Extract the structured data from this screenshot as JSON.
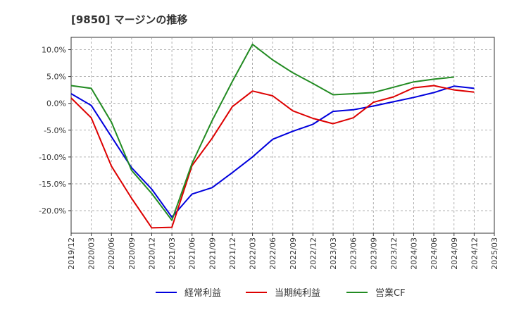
{
  "chart_data": {
    "type": "line",
    "title": "[9850]  マージンの推移",
    "xlabel": "",
    "ylabel": "",
    "x": [
      "2019/12",
      "2020/03",
      "2020/06",
      "2020/09",
      "2020/12",
      "2021/03",
      "2021/06",
      "2021/09",
      "2021/12",
      "2022/03",
      "2022/06",
      "2022/09",
      "2022/12",
      "2023/03",
      "2023/06",
      "2023/09",
      "2023/12",
      "2024/03",
      "2024/06",
      "2024/09",
      "2024/12",
      "2025/03"
    ],
    "ylim": [
      -24.2,
      12.3
    ],
    "yticks": [
      10,
      5,
      0,
      -5,
      -10,
      -15,
      -20
    ],
    "ytick_labels": [
      "10.0%",
      "5.0%",
      "0.0%",
      "-5.0%",
      "-10.0%",
      "-15.0%",
      "-20.0%"
    ],
    "grid": true,
    "legend_position": "bottom",
    "series": [
      {
        "name": "経常利益",
        "color": "#0000dd",
        "values": [
          1.8,
          -0.4,
          -6.2,
          -12.0,
          -16.0,
          -21.2,
          -16.9,
          -15.7,
          -12.9,
          -10.0,
          -6.7,
          -5.2,
          -3.9,
          -1.5,
          -1.2,
          -0.5,
          0.3,
          1.1,
          2.0,
          3.2,
          2.8,
          null
        ]
      },
      {
        "name": "当期純利益",
        "color": "#dd0000",
        "values": [
          1.0,
          -2.7,
          -11.7,
          -17.7,
          -23.2,
          -23.1,
          -11.6,
          -6.5,
          -0.6,
          2.3,
          1.4,
          -1.4,
          -2.8,
          -3.8,
          -2.7,
          0.2,
          1.2,
          2.9,
          3.3,
          2.5,
          2.1,
          null
        ]
      },
      {
        "name": "営業CF",
        "color": "#228b22",
        "values": [
          3.3,
          2.8,
          -3.5,
          -12.5,
          -16.8,
          -21.8,
          -11.2,
          -3.2,
          4.1,
          11.0,
          8.1,
          5.7,
          3.7,
          1.6,
          1.8,
          2.0,
          3.0,
          4.0,
          4.5,
          4.9,
          null,
          null
        ]
      }
    ]
  }
}
